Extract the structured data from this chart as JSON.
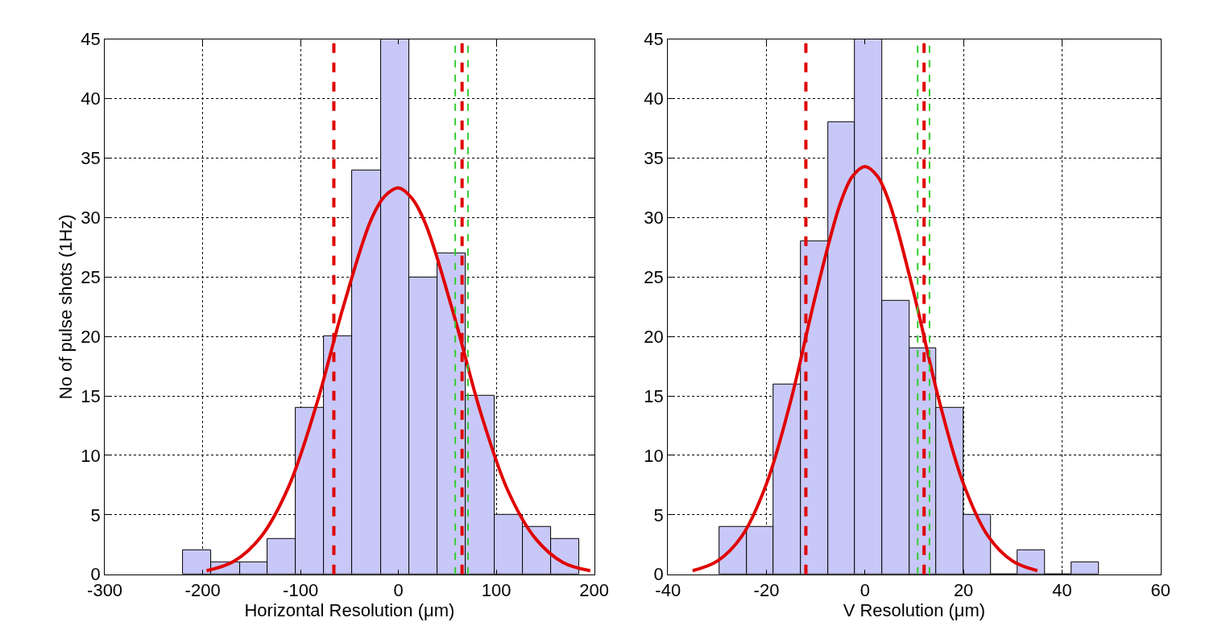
{
  "chart_data": [
    {
      "type": "histogram",
      "xlabel": "Horizontal Resolution (μm)",
      "ylabel": "No of pulse shots (1Hz)",
      "xlim": [
        -300,
        200
      ],
      "xticks": [
        -300,
        -200,
        -100,
        0,
        100,
        200
      ],
      "ylim": [
        0,
        45
      ],
      "yticks": [
        0,
        5,
        10,
        15,
        20,
        25,
        30,
        35,
        40,
        45
      ],
      "grid": true,
      "series": [
        {
          "color": "#c8c8f8",
          "bins": [
            -220,
            -191,
            -162,
            -134,
            -105,
            -76,
            -47,
            -18,
            11,
            40,
            69,
            98,
            127,
            156,
            185
          ],
          "values": [
            2,
            1,
            1,
            3,
            14,
            20,
            34,
            45,
            25,
            27,
            15,
            5,
            4,
            3
          ]
        },
        {
          "type": "line",
          "color": "#e00000",
          "x": [
            -196,
            -168,
            -140,
            -112,
            -84,
            -56,
            -28,
            -14,
            0,
            14,
            28,
            56,
            84,
            112,
            140,
            168,
            196
          ],
          "values": [
            0.3,
            1.1,
            3.2,
            7.4,
            14.2,
            22.6,
            29.8,
            31.8,
            32.5,
            31.6,
            29.4,
            22.0,
            13.6,
            7.0,
            3.0,
            1.0,
            0.3
          ]
        }
      ],
      "ref_lines": [
        {
          "axis": "x",
          "value": -66,
          "color": "#e00000",
          "line_style": "dashed"
        },
        {
          "axis": "x",
          "value": 65,
          "color": "#e00000",
          "line_style": "dashed"
        },
        {
          "axis": "x",
          "value": 58,
          "color": "#33cc33",
          "line_style": "dashed"
        },
        {
          "axis": "x",
          "value": 71,
          "color": "#33cc33",
          "line_style": "dashed"
        }
      ]
    },
    {
      "type": "histogram",
      "xlabel": "V Resolution (μm)",
      "xlim": [
        -40,
        60
      ],
      "xticks": [
        -40,
        -20,
        0,
        20,
        40,
        60
      ],
      "ylim": [
        0,
        45
      ],
      "yticks": [
        0,
        5,
        10,
        15,
        20,
        25,
        30,
        35,
        40,
        45
      ],
      "grid": true,
      "series": [
        {
          "color": "#c8c8f8",
          "bins": [
            -29.5,
            -24,
            -18.5,
            -13,
            -7.5,
            -2,
            3.5,
            9,
            14.5,
            20,
            25.5,
            31,
            36.5,
            42,
            47.5
          ],
          "values": [
            4,
            4,
            16,
            28,
            38,
            45,
            23,
            19,
            14,
            5,
            0,
            2,
            0,
            1
          ]
        },
        {
          "type": "line",
          "color": "#e00000",
          "x": [
            -35,
            -30,
            -25,
            -20,
            -15,
            -10,
            -5,
            -2.5,
            0,
            2.5,
            5,
            10,
            15,
            20,
            25,
            30,
            35
          ],
          "values": [
            0.3,
            1.1,
            3.2,
            7.6,
            14.7,
            23.5,
            31.2,
            33.5,
            34.3,
            33.5,
            31.2,
            23.5,
            14.7,
            7.6,
            3.2,
            1.1,
            0.3
          ]
        }
      ],
      "ref_lines": [
        {
          "axis": "x",
          "value": -12,
          "color": "#e00000",
          "line_style": "dashed"
        },
        {
          "axis": "x",
          "value": 12,
          "color": "#e00000",
          "line_style": "dashed"
        },
        {
          "axis": "x",
          "value": 10.7,
          "color": "#33cc33",
          "line_style": "dashed"
        },
        {
          "axis": "x",
          "value": 13.1,
          "color": "#33cc33",
          "line_style": "dashed"
        }
      ]
    }
  ]
}
